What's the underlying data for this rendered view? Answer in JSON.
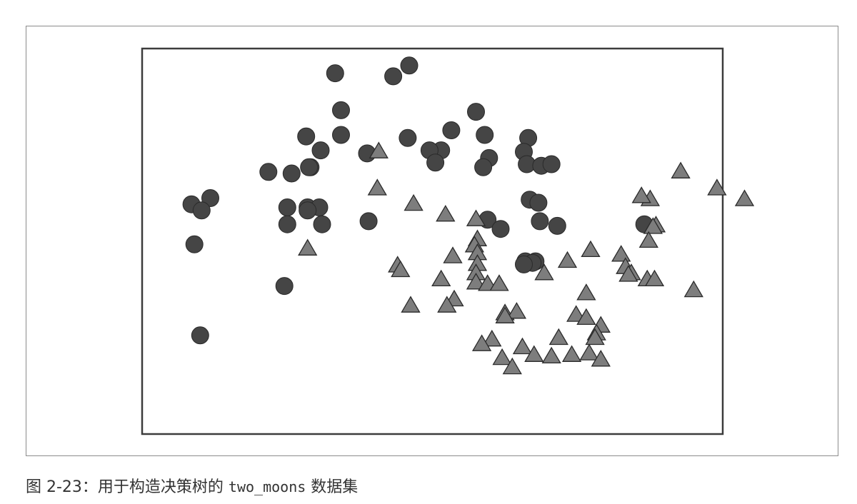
{
  "caption": {
    "prefix": "图 2-23：用于构造决策树的 ",
    "code": "two_moons",
    "suffix": " 数据集"
  },
  "colors": {
    "class0_fill": "#454545",
    "class1_fill": "#7d7d7d",
    "marker_edge": "#2a2a2a",
    "axes_border": "#3c3c3c"
  },
  "chart_data": {
    "type": "scatter",
    "title": "",
    "xlabel": "",
    "ylabel": "",
    "grid": false,
    "ticks": false,
    "xlim": [
      -1.5,
      2.5
    ],
    "ylim": [
      -1.0,
      1.5
    ],
    "series": [
      {
        "marker": "circle",
        "points": [
          [
            -0.17,
            1.34
          ],
          [
            0.23,
            1.32
          ],
          [
            0.34,
            1.39
          ],
          [
            -0.13,
            1.1
          ],
          [
            0.8,
            1.09
          ],
          [
            -0.37,
            0.93
          ],
          [
            -0.13,
            0.94
          ],
          [
            -0.27,
            0.84
          ],
          [
            0.05,
            0.82
          ],
          [
            0.33,
            0.92
          ],
          [
            0.63,
            0.97
          ],
          [
            0.86,
            0.94
          ],
          [
            1.16,
            0.92
          ],
          [
            0.56,
            0.84
          ],
          [
            0.48,
            0.84
          ],
          [
            0.52,
            0.76
          ],
          [
            0.89,
            0.79
          ],
          [
            1.13,
            0.83
          ],
          [
            0.85,
            0.73
          ],
          [
            1.15,
            0.75
          ],
          [
            1.25,
            0.74
          ],
          [
            1.32,
            0.75
          ],
          [
            -0.34,
            0.73
          ],
          [
            -0.35,
            0.73
          ],
          [
            -0.63,
            0.7
          ],
          [
            -0.47,
            0.69
          ],
          [
            -1.03,
            0.53
          ],
          [
            -1.16,
            0.49
          ],
          [
            -1.09,
            0.45
          ],
          [
            -0.5,
            0.47
          ],
          [
            -0.36,
            0.47
          ],
          [
            -0.28,
            0.47
          ],
          [
            -0.36,
            0.45
          ],
          [
            -0.5,
            0.36
          ],
          [
            -0.26,
            0.36
          ],
          [
            0.06,
            0.38
          ],
          [
            0.88,
            0.39
          ],
          [
            0.97,
            0.33
          ],
          [
            1.17,
            0.52
          ],
          [
            1.23,
            0.5
          ],
          [
            1.24,
            0.38
          ],
          [
            1.36,
            0.35
          ],
          [
            1.96,
            0.36
          ],
          [
            1.14,
            0.12
          ],
          [
            1.21,
            0.12
          ],
          [
            1.19,
            0.11
          ],
          [
            1.13,
            0.1
          ],
          [
            -1.14,
            0.23
          ],
          [
            -0.52,
            -0.04
          ],
          [
            -1.1,
            -0.36
          ]
        ]
      },
      {
        "marker": "triangle",
        "points": [
          [
            0.13,
            0.83
          ],
          [
            2.21,
            0.7
          ],
          [
            0.12,
            0.59
          ],
          [
            2.46,
            0.59
          ],
          [
            2.0,
            0.52
          ],
          [
            1.94,
            0.54
          ],
          [
            2.65,
            0.52
          ],
          [
            0.37,
            0.49
          ],
          [
            0.59,
            0.42
          ],
          [
            0.8,
            0.39
          ],
          [
            2.04,
            0.35
          ],
          [
            2.02,
            0.34
          ],
          [
            1.99,
            0.25
          ],
          [
            0.81,
            0.26
          ],
          [
            0.79,
            0.22
          ],
          [
            -0.36,
            0.2
          ],
          [
            0.81,
            0.17
          ],
          [
            1.59,
            0.19
          ],
          [
            1.8,
            0.16
          ],
          [
            0.64,
            0.15
          ],
          [
            1.43,
            0.12
          ],
          [
            0.26,
            0.09
          ],
          [
            0.81,
            0.1
          ],
          [
            0.28,
            0.06
          ],
          [
            1.83,
            0.08
          ],
          [
            1.87,
            0.04
          ],
          [
            1.85,
            0.03
          ],
          [
            0.8,
            0.04
          ],
          [
            1.27,
            0.04
          ],
          [
            0.56,
            0.0
          ],
          [
            0.8,
            -0.02
          ],
          [
            0.88,
            -0.03
          ],
          [
            0.96,
            -0.03
          ],
          [
            1.98,
            0.0
          ],
          [
            2.03,
            0.0
          ],
          [
            2.3,
            -0.07
          ],
          [
            1.56,
            -0.09
          ],
          [
            0.65,
            -0.13
          ],
          [
            0.6,
            -0.17
          ],
          [
            0.35,
            -0.17
          ],
          [
            1.0,
            -0.22
          ],
          [
            1.08,
            -0.21
          ],
          [
            1.0,
            -0.24
          ],
          [
            1.49,
            -0.23
          ],
          [
            1.56,
            -0.25
          ],
          [
            1.66,
            -0.3
          ],
          [
            1.63,
            -0.35
          ],
          [
            1.62,
            -0.38
          ],
          [
            0.91,
            -0.39
          ],
          [
            0.84,
            -0.42
          ],
          [
            1.37,
            -0.38
          ],
          [
            1.12,
            -0.44
          ],
          [
            1.58,
            -0.48
          ],
          [
            1.2,
            -0.49
          ],
          [
            0.98,
            -0.51
          ],
          [
            1.32,
            -0.5
          ],
          [
            1.66,
            -0.52
          ],
          [
            1.05,
            -0.57
          ],
          [
            1.46,
            -0.49
          ]
        ]
      }
    ]
  }
}
